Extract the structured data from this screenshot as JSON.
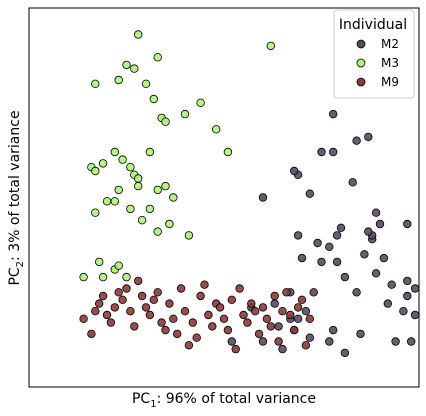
{
  "chart_data": {
    "type": "scatter",
    "xlabel": {
      "main": "PC",
      "sub": "1",
      "rest": ": 96% of total variance"
    },
    "ylabel": {
      "main": "PC",
      "sub": "2",
      "rest": ": 3% of total variance"
    },
    "xlim": [
      0,
      1
    ],
    "ylim": [
      0,
      1
    ],
    "ticks": "none",
    "grid": false,
    "legend": {
      "title": "Individual",
      "placement": "top-right"
    },
    "series": [
      {
        "name": "M2",
        "color": "#5a4a60",
        "points": [
          [
            0.52,
            0.12
          ],
          [
            0.57,
            0.21
          ],
          [
            0.6,
            0.5
          ],
          [
            0.63,
            0.22
          ],
          [
            0.6,
            0.12
          ],
          [
            0.64,
            0.16
          ],
          [
            0.65,
            0.1
          ],
          [
            0.68,
            0.15
          ],
          [
            0.69,
            0.18
          ],
          [
            0.67,
            0.25
          ],
          [
            0.71,
            0.2
          ],
          [
            0.72,
            0.13
          ],
          [
            0.73,
            0.25
          ],
          [
            0.7,
            0.34
          ],
          [
            0.69,
            0.4
          ],
          [
            0.75,
            0.33
          ],
          [
            0.74,
            0.38
          ],
          [
            0.72,
            0.51
          ],
          [
            0.75,
            0.62
          ],
          [
            0.78,
            0.62
          ],
          [
            0.78,
            0.72
          ],
          [
            0.79,
            0.4
          ],
          [
            0.81,
            0.29
          ],
          [
            0.84,
            0.25
          ],
          [
            0.81,
            0.09
          ],
          [
            0.85,
            0.14
          ],
          [
            0.86,
            0.35
          ],
          [
            0.8,
            0.42
          ],
          [
            0.83,
            0.54
          ],
          [
            0.84,
            0.65
          ],
          [
            0.87,
            0.66
          ],
          [
            0.89,
            0.46
          ],
          [
            0.9,
            0.43
          ],
          [
            0.88,
            0.39
          ],
          [
            0.89,
            0.3
          ],
          [
            0.88,
            0.4
          ],
          [
            0.91,
            0.34
          ],
          [
            0.92,
            0.22
          ],
          [
            0.93,
            0.27
          ],
          [
            0.94,
            0.12
          ],
          [
            0.96,
            0.2
          ],
          [
            0.97,
            0.28
          ],
          [
            0.97,
            0.43
          ],
          [
            0.99,
            0.26
          ],
          [
            0.99,
            0.19
          ],
          [
            0.98,
            0.12
          ],
          [
            0.97,
            0.24
          ],
          [
            0.69,
            0.56
          ],
          [
            0.68,
            0.57
          ],
          [
            0.77,
            0.37
          ],
          [
            0.87,
            0.41
          ],
          [
            0.78,
            0.15
          ],
          [
            0.79,
            0.33
          ],
          [
            0.77,
            0.12
          ],
          [
            0.67,
            0.18
          ]
        ]
      },
      {
        "name": "M3",
        "color": "#b0f07a",
        "points": [
          [
            0.27,
            0.84
          ],
          [
            0.23,
            0.81
          ],
          [
            0.25,
            0.85
          ],
          [
            0.28,
            0.93
          ],
          [
            0.3,
            0.8
          ],
          [
            0.33,
            0.87
          ],
          [
            0.32,
            0.76
          ],
          [
            0.34,
            0.71
          ],
          [
            0.35,
            0.7
          ],
          [
            0.4,
            0.72
          ],
          [
            0.44,
            0.75
          ],
          [
            0.48,
            0.68
          ],
          [
            0.51,
            0.62
          ],
          [
            0.16,
            0.58
          ],
          [
            0.19,
            0.59
          ],
          [
            0.17,
            0.57
          ],
          [
            0.22,
            0.62
          ],
          [
            0.24,
            0.6
          ],
          [
            0.27,
            0.56
          ],
          [
            0.28,
            0.55
          ],
          [
            0.31,
            0.62
          ],
          [
            0.33,
            0.52
          ],
          [
            0.35,
            0.53
          ],
          [
            0.37,
            0.5
          ],
          [
            0.26,
            0.47
          ],
          [
            0.17,
            0.46
          ],
          [
            0.2,
            0.49
          ],
          [
            0.22,
            0.49
          ],
          [
            0.23,
            0.52
          ],
          [
            0.29,
            0.44
          ],
          [
            0.31,
            0.47
          ],
          [
            0.33,
            0.41
          ],
          [
            0.36,
            0.43
          ],
          [
            0.18,
            0.33
          ],
          [
            0.22,
            0.31
          ],
          [
            0.23,
            0.32
          ],
          [
            0.25,
            0.29
          ],
          [
            0.19,
            0.29
          ],
          [
            0.14,
            0.29
          ],
          [
            0.41,
            0.4
          ],
          [
            0.62,
            0.9
          ],
          [
            0.17,
            0.8
          ],
          [
            0.26,
            0.58
          ],
          [
            0.28,
            0.53
          ]
        ]
      },
      {
        "name": "M9",
        "color": "#8b3a3a",
        "points": [
          [
            0.14,
            0.18
          ],
          [
            0.16,
            0.14
          ],
          [
            0.17,
            0.2
          ],
          [
            0.18,
            0.22
          ],
          [
            0.19,
            0.24
          ],
          [
            0.2,
            0.19
          ],
          [
            0.21,
            0.17
          ],
          [
            0.22,
            0.21
          ],
          [
            0.23,
            0.25
          ],
          [
            0.24,
            0.23
          ],
          [
            0.25,
            0.26
          ],
          [
            0.26,
            0.2
          ],
          [
            0.27,
            0.16
          ],
          [
            0.28,
            0.28
          ],
          [
            0.29,
            0.24
          ],
          [
            0.3,
            0.21
          ],
          [
            0.31,
            0.19
          ],
          [
            0.32,
            0.23
          ],
          [
            0.33,
            0.25
          ],
          [
            0.34,
            0.17
          ],
          [
            0.35,
            0.15
          ],
          [
            0.36,
            0.22
          ],
          [
            0.37,
            0.18
          ],
          [
            0.38,
            0.14
          ],
          [
            0.39,
            0.26
          ],
          [
            0.4,
            0.2
          ],
          [
            0.41,
            0.11
          ],
          [
            0.42,
            0.17
          ],
          [
            0.43,
            0.13
          ],
          [
            0.44,
            0.24
          ],
          [
            0.45,
            0.27
          ],
          [
            0.46,
            0.19
          ],
          [
            0.47,
            0.16
          ],
          [
            0.48,
            0.22
          ],
          [
            0.49,
            0.21
          ],
          [
            0.5,
            0.18
          ],
          [
            0.51,
            0.15
          ],
          [
            0.52,
            0.23
          ],
          [
            0.53,
            0.1
          ],
          [
            0.54,
            0.26
          ],
          [
            0.55,
            0.19
          ],
          [
            0.56,
            0.17
          ],
          [
            0.57,
            0.22
          ],
          [
            0.58,
            0.2
          ],
          [
            0.59,
            0.14
          ],
          [
            0.6,
            0.21
          ],
          [
            0.61,
            0.18
          ],
          [
            0.62,
            0.16
          ],
          [
            0.63,
            0.24
          ],
          [
            0.64,
            0.12
          ],
          [
            0.65,
            0.2
          ],
          [
            0.66,
            0.25
          ],
          [
            0.67,
            0.19
          ],
          [
            0.68,
            0.15
          ],
          [
            0.69,
            0.21
          ],
          [
            0.7,
            0.23
          ],
          [
            0.71,
            0.11
          ],
          [
            0.72,
            0.18
          ]
        ]
      }
    ]
  }
}
